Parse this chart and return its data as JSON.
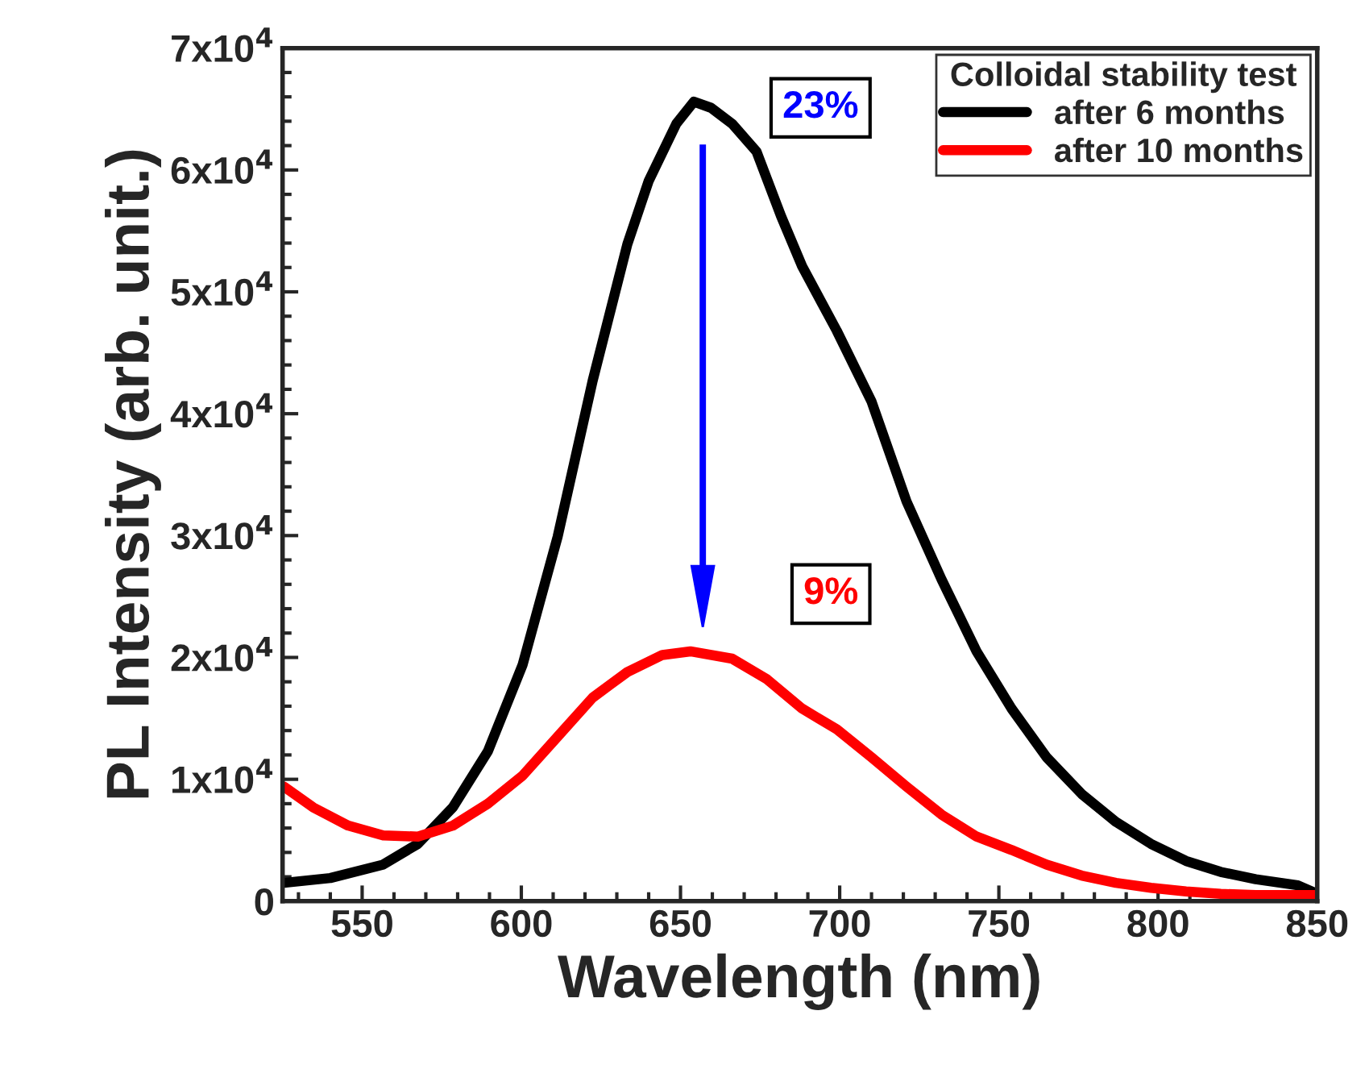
{
  "chart_data": {
    "type": "line",
    "xlabel": "Wavelength (nm)",
    "ylabel": "PL Intensity (arb. unit.)",
    "legend_title": "Colloidal stability test",
    "xlim": [
      525,
      850
    ],
    "xticks": [
      550,
      600,
      650,
      700,
      750,
      800,
      850
    ],
    "ylim": [
      0,
      70000
    ],
    "yticks": [
      0,
      {
        "value": 10000,
        "label": "1x10$^{4}$"
      },
      {
        "value": 20000,
        "label": "2x10$^{4}$"
      },
      {
        "value": 30000,
        "label": "3x10$^{4}$"
      },
      {
        "value": 40000,
        "label": "4x10$^{4}$"
      },
      {
        "value": 50000,
        "label": "5x10$^{4}$"
      },
      {
        "value": 60000,
        "label": "6x10$^{4}$"
      },
      {
        "value": 70000,
        "label": "7x10$^{4}$"
      }
    ],
    "legend": "top right",
    "grid": false,
    "line_style": "solid",
    "marker": "none",
    "series": [
      {
        "name": "after 6 months",
        "color": "#000000",
        "x": [
          525.4,
          540,
          556.6,
          567.5,
          578.5,
          589.5,
          600.4,
          611.4,
          622.4,
          633.3,
          640,
          648.7,
          654.2,
          659.6,
          666.2,
          673.9,
          681.6,
          688.2,
          699.1,
          710,
          721,
          732,
          743,
          754,
          765,
          776,
          786.8,
          797.8,
          808.8,
          819.7,
          830.7,
          843.9,
          850
        ],
        "values": [
          1500,
          1900,
          3000,
          4700,
          7700,
          12300,
          19400,
          29900,
          42700,
          53900,
          59100,
          63800,
          65600,
          65100,
          63800,
          61500,
          56200,
          52100,
          46800,
          41000,
          32800,
          26400,
          20500,
          15800,
          11800,
          8800,
          6500,
          4700,
          3300,
          2400,
          1800,
          1300,
          600
        ]
      },
      {
        "name": "after 10 months",
        "color": "#ff0000",
        "x": [
          525.4,
          534.6,
          545.6,
          556.6,
          567.5,
          578.5,
          589.5,
          600.4,
          611.4,
          622.4,
          633.3,
          644.3,
          653.1,
          666.2,
          677.2,
          688.2,
          699.1,
          710,
          721,
          732,
          743,
          754,
          765,
          776,
          786.8,
          797.8,
          808.8,
          819.7,
          830.7,
          850
        ],
        "values": [
          9400,
          7700,
          6200,
          5400,
          5300,
          6200,
          8000,
          10300,
          13500,
          16700,
          18800,
          20200,
          20500,
          19900,
          18200,
          15800,
          14100,
          11800,
          9400,
          7100,
          5300,
          4200,
          3000,
          2100,
          1500,
          1100,
          800,
          600,
          500,
          500
        ]
      }
    ],
    "annotations": [
      "23%",
      "9%"
    ]
  }
}
